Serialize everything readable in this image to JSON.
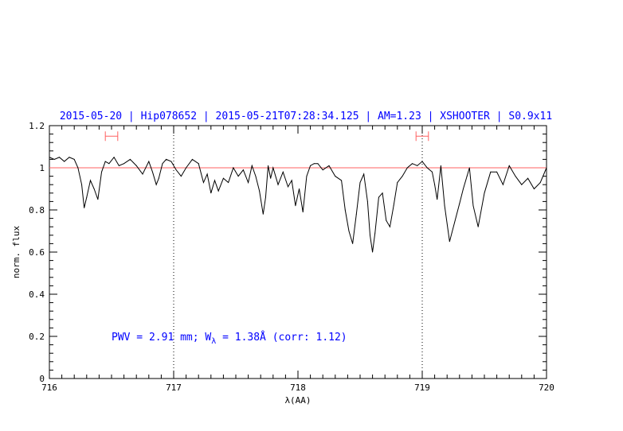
{
  "chart_data": {
    "type": "line",
    "title": "2015-05-20 | Hip078652 | 2015-05-21T07:28:34.125 | AM=1.23 | XSHOOTER | S0.9x11",
    "xlabel": "λ(AA)",
    "ylabel": "norm. flux",
    "xlim": [
      716,
      720
    ],
    "ylim": [
      0,
      1.2
    ],
    "x_ticks": [
      "716",
      "717",
      "718",
      "719",
      "720"
    ],
    "y_ticks": [
      "0",
      "0.2",
      "0.4",
      "0.6",
      "0.8",
      "1",
      "1.2"
    ],
    "grid": false,
    "reference_line": {
      "y": 1.0,
      "color": "#ff6060"
    },
    "vertical_markers": [
      717.0,
      719.0
    ],
    "range_markers": [
      {
        "x0": 716.45,
        "x1": 716.55
      },
      {
        "x0": 718.95,
        "x1": 719.05
      }
    ],
    "annotation": {
      "prefix": "PWV = 2.91 mm; W",
      "subscript": "λ",
      "suffix": " = 1.38Å (corr: 1.12)"
    },
    "series": [
      {
        "color": "#000000",
        "x": [
          716.0,
          716.04,
          716.08,
          716.12,
          716.16,
          716.2,
          716.23,
          716.26,
          716.28,
          716.3,
          716.33,
          716.36,
          716.39,
          716.42,
          716.45,
          716.48,
          716.52,
          716.56,
          716.6,
          716.65,
          716.7,
          716.75,
          716.8,
          716.83,
          716.86,
          716.88,
          716.91,
          716.94,
          716.98,
          717.02,
          717.06,
          717.1,
          717.15,
          717.2,
          717.24,
          717.27,
          717.3,
          717.33,
          717.36,
          717.4,
          717.44,
          717.48,
          717.52,
          717.56,
          717.6,
          717.63,
          717.66,
          717.69,
          717.72,
          717.74,
          717.76,
          717.78,
          717.8,
          717.84,
          717.88,
          717.92,
          717.95,
          717.98,
          718.01,
          718.04,
          718.07,
          718.1,
          718.13,
          718.16,
          718.2,
          718.25,
          718.3,
          718.35,
          718.38,
          718.41,
          718.44,
          718.47,
          718.5,
          718.53,
          718.56,
          718.58,
          718.6,
          718.62,
          718.65,
          718.68,
          718.71,
          718.74,
          718.77,
          718.8,
          718.84,
          718.88,
          718.92,
          718.96,
          719.0,
          719.04,
          719.08,
          719.1,
          719.12,
          719.15,
          719.18,
          719.22,
          719.26,
          719.3,
          719.33,
          719.36,
          719.38,
          719.41,
          719.45,
          719.5,
          719.55,
          719.6,
          719.65,
          719.7,
          719.75,
          719.8,
          719.85,
          719.9,
          719.95,
          720.0
        ],
        "y": [
          1.05,
          1.04,
          1.05,
          1.03,
          1.05,
          1.04,
          1.0,
          0.92,
          0.81,
          0.86,
          0.94,
          0.9,
          0.85,
          0.98,
          1.03,
          1.02,
          1.05,
          1.01,
          1.02,
          1.04,
          1.01,
          0.97,
          1.03,
          0.98,
          0.92,
          0.95,
          1.02,
          1.04,
          1.03,
          0.99,
          0.96,
          1.0,
          1.04,
          1.02,
          0.93,
          0.97,
          0.88,
          0.94,
          0.89,
          0.95,
          0.93,
          1.0,
          0.96,
          0.99,
          0.93,
          1.01,
          0.96,
          0.89,
          0.78,
          0.86,
          1.01,
          0.95,
          1.0,
          0.92,
          0.98,
          0.91,
          0.94,
          0.82,
          0.9,
          0.79,
          0.96,
          1.01,
          1.02,
          1.02,
          0.99,
          1.01,
          0.96,
          0.94,
          0.8,
          0.7,
          0.64,
          0.78,
          0.93,
          0.97,
          0.84,
          0.68,
          0.6,
          0.69,
          0.86,
          0.88,
          0.75,
          0.72,
          0.82,
          0.93,
          0.96,
          1.0,
          1.02,
          1.01,
          1.03,
          1.0,
          0.98,
          0.92,
          0.85,
          1.01,
          0.82,
          0.65,
          0.74,
          0.83,
          0.9,
          0.96,
          1.0,
          0.82,
          0.72,
          0.88,
          0.98,
          0.98,
          0.92,
          1.01,
          0.96,
          0.92,
          0.95,
          0.9,
          0.93,
          1.0
        ]
      }
    ]
  }
}
